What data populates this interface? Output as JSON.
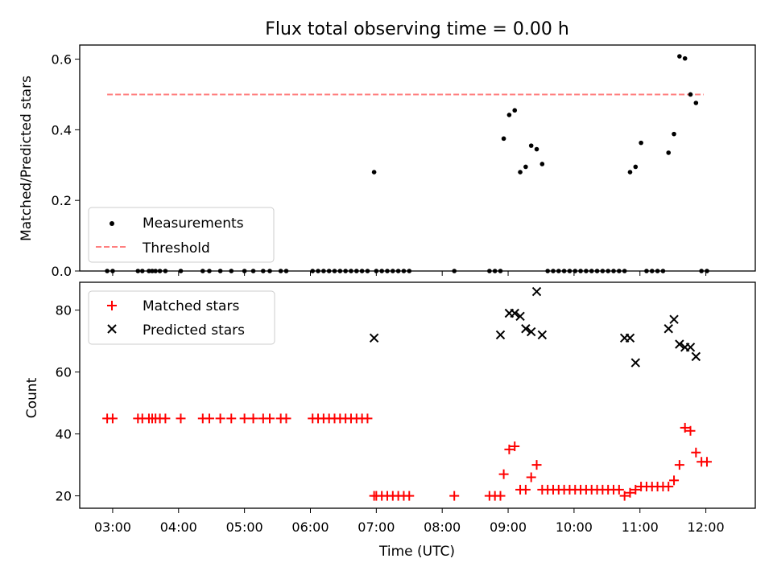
{
  "chart_data": [
    {
      "type": "scatter",
      "title": "Flux total observing time = 0.00 h",
      "xlabel": "",
      "ylabel": "Matched/Predicted stars",
      "xlim": [
        "02:30",
        "12:45"
      ],
      "ylim": [
        0,
        0.64
      ],
      "yticks": [
        0.0,
        0.2,
        0.4,
        0.6
      ],
      "legend_position": "lower-left",
      "legend": [
        "Measurements",
        "Threshold"
      ],
      "threshold": {
        "name": "Threshold",
        "y": 0.5,
        "x_range": [
          "02:55",
          "11:58"
        ],
        "color": "#ff7f7f"
      },
      "series": [
        {
          "name": "Measurements",
          "color": "#000000",
          "x": [
            "02:55",
            "03:00",
            "03:23",
            "03:27",
            "03:33",
            "03:36",
            "03:39",
            "03:43",
            "03:48",
            "04:02",
            "04:22",
            "04:28",
            "04:38",
            "04:48",
            "05:00",
            "05:08",
            "05:17",
            "05:23",
            "05:33",
            "05:38",
            "06:02",
            "06:07",
            "06:12",
            "06:17",
            "06:22",
            "06:27",
            "06:32",
            "06:37",
            "06:42",
            "06:47",
            "06:52",
            "06:58",
            "07:00",
            "07:05",
            "07:10",
            "07:15",
            "07:20",
            "07:25",
            "07:30",
            "08:11",
            "08:43",
            "08:48",
            "08:53",
            "08:56",
            "09:01",
            "09:06",
            "09:11",
            "09:16",
            "09:21",
            "09:26",
            "09:31",
            "09:36",
            "09:41",
            "09:46",
            "09:51",
            "09:56",
            "10:01",
            "10:06",
            "10:11",
            "10:16",
            "10:21",
            "10:26",
            "10:31",
            "10:36",
            "10:41",
            "10:46",
            "10:51",
            "10:56",
            "11:01",
            "11:06",
            "11:11",
            "11:16",
            "11:21",
            "11:26",
            "11:31",
            "11:36",
            "11:41",
            "11:46",
            "11:51",
            "11:56",
            "12:01"
          ],
          "y": [
            0,
            0,
            0,
            0,
            0,
            0,
            0,
            0,
            0,
            0,
            0,
            0,
            0,
            0,
            0,
            0,
            0,
            0,
            0,
            0,
            0,
            0,
            0,
            0,
            0,
            0,
            0,
            0,
            0,
            0,
            0,
            0.28,
            0,
            0,
            0,
            0,
            0,
            0,
            0,
            0,
            0,
            0,
            0,
            0.375,
            0.442,
            0.455,
            0.28,
            0.295,
            0.355,
            0.345,
            0.303,
            0,
            0,
            0,
            0,
            0,
            0,
            0,
            0,
            0,
            0,
            0,
            0,
            0,
            0,
            0,
            0.28,
            0.295,
            0.363,
            0,
            0,
            0,
            0,
            0.335,
            0.388,
            0.608,
            0.602,
            0.5,
            0.476,
            0,
            0
          ]
        }
      ]
    },
    {
      "type": "scatter",
      "xlabel": "Time (UTC)",
      "ylabel": "Count",
      "xlim": [
        "02:30",
        "12:45"
      ],
      "ylim": [
        16,
        89
      ],
      "yticks": [
        20,
        40,
        60,
        80
      ],
      "xticks": [
        "03:00",
        "04:00",
        "05:00",
        "06:00",
        "07:00",
        "08:00",
        "09:00",
        "10:00",
        "11:00",
        "12:00"
      ],
      "legend_position": "upper-left",
      "legend": [
        "Matched stars",
        "Predicted stars"
      ],
      "series": [
        {
          "name": "Matched stars",
          "color": "#ff0000",
          "marker": "+",
          "x": [
            "02:55",
            "03:00",
            "03:23",
            "03:27",
            "03:33",
            "03:36",
            "03:39",
            "03:43",
            "03:48",
            "04:02",
            "04:22",
            "04:28",
            "04:38",
            "04:48",
            "05:00",
            "05:08",
            "05:17",
            "05:23",
            "05:33",
            "05:38",
            "06:02",
            "06:07",
            "06:12",
            "06:17",
            "06:22",
            "06:27",
            "06:32",
            "06:37",
            "06:42",
            "06:47",
            "06:52",
            "06:58",
            "07:00",
            "07:05",
            "07:10",
            "07:15",
            "07:20",
            "07:25",
            "07:30",
            "08:11",
            "08:43",
            "08:48",
            "08:53",
            "08:56",
            "09:01",
            "09:06",
            "09:11",
            "09:16",
            "09:21",
            "09:26",
            "09:31",
            "09:36",
            "09:41",
            "09:46",
            "09:51",
            "09:56",
            "10:01",
            "10:06",
            "10:11",
            "10:16",
            "10:21",
            "10:26",
            "10:31",
            "10:36",
            "10:41",
            "10:46",
            "10:51",
            "10:56",
            "11:01",
            "11:06",
            "11:11",
            "11:16",
            "11:21",
            "11:26",
            "11:31",
            "11:36",
            "11:41",
            "11:46",
            "11:51",
            "11:56",
            "12:01"
          ],
          "y": [
            45,
            45,
            45,
            45,
            45,
            45,
            45,
            45,
            45,
            45,
            45,
            45,
            45,
            45,
            45,
            45,
            45,
            45,
            45,
            45,
            45,
            45,
            45,
            45,
            45,
            45,
            45,
            45,
            45,
            45,
            45,
            20,
            20,
            20,
            20,
            20,
            20,
            20,
            20,
            20,
            20,
            20,
            20,
            27,
            35,
            36,
            22,
            22,
            26,
            30,
            22,
            22,
            22,
            22,
            22,
            22,
            22,
            22,
            22,
            22,
            22,
            22,
            22,
            22,
            22,
            20,
            21,
            22,
            23,
            23,
            23,
            23,
            23,
            23,
            25,
            30,
            42,
            41,
            34,
            31,
            31
          ]
        },
        {
          "name": "Predicted stars",
          "color": "#000000",
          "marker": "x",
          "x": [
            "06:58",
            "08:53",
            "09:01",
            "09:06",
            "09:11",
            "09:16",
            "09:21",
            "09:26",
            "09:31",
            "09:36",
            "10:46",
            "10:51",
            "10:56",
            "11:26",
            "11:31",
            "11:36",
            "11:41",
            "11:46",
            "11:51"
          ],
          "y": [
            71,
            72,
            79,
            79,
            78,
            74,
            73,
            86,
            72,
            null,
            71,
            71,
            63,
            74,
            77,
            69,
            68,
            68,
            65
          ]
        }
      ]
    }
  ]
}
